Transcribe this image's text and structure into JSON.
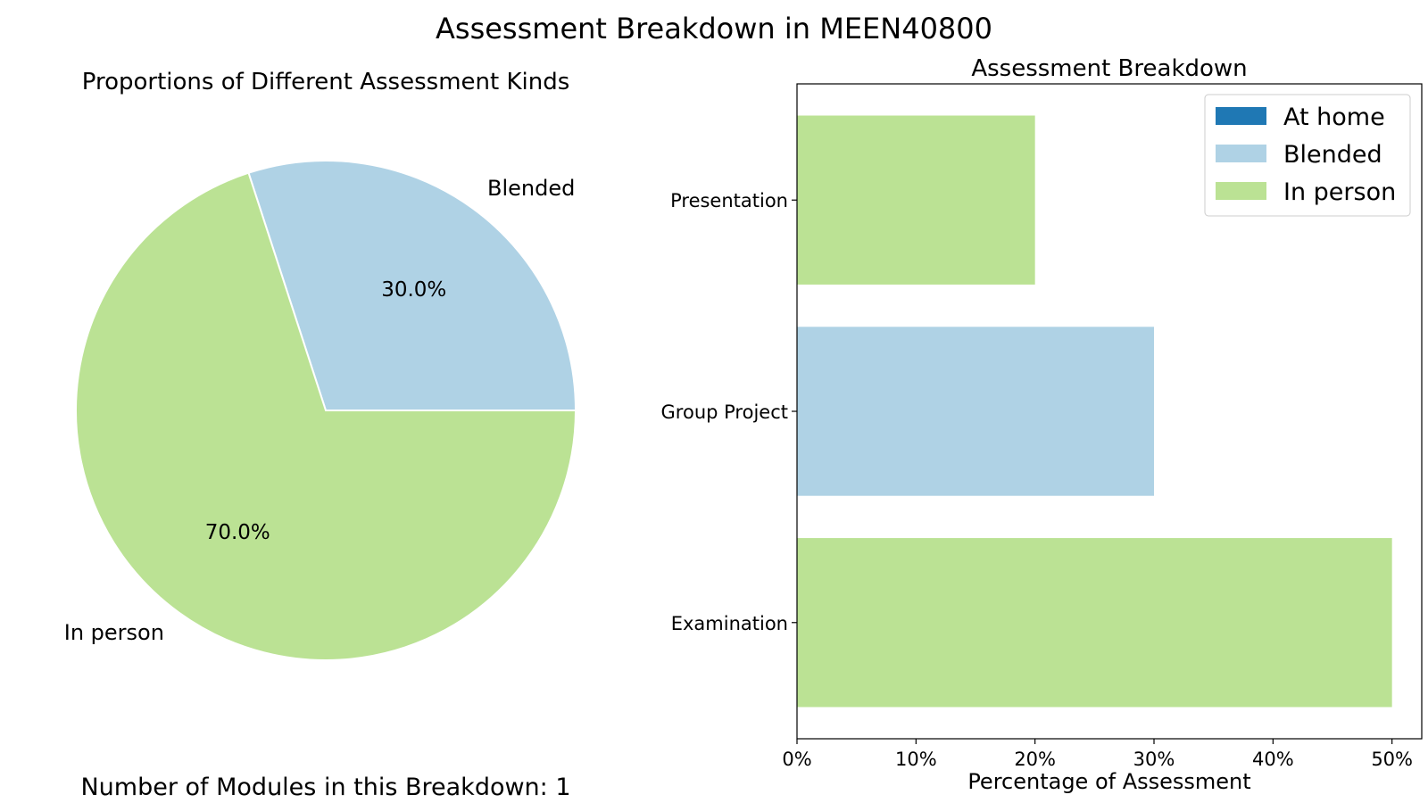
{
  "figure": {
    "title": "Assessment Breakdown in MEEN40800",
    "footer": "Number of Modules in this Breakdown: 1"
  },
  "colors": {
    "At home": "#1f78b4",
    "Blended": "#afd2e5",
    "In person": "#bbe294"
  },
  "chart_data": [
    {
      "type": "pie",
      "title": "Proportions of Different Assessment Kinds",
      "slices": [
        {
          "label": "Blended",
          "value": 30.0,
          "pct_label": "30.0%"
        },
        {
          "label": "In person",
          "value": 70.0,
          "pct_label": "70.0%"
        }
      ],
      "start_angle_deg": 0,
      "direction": "counterclockwise"
    },
    {
      "type": "bar",
      "orientation": "horizontal",
      "title": "Assessment Breakdown",
      "xlabel": "Percentage of Assessment",
      "ylabel": "",
      "categories": [
        "Presentation",
        "Group Project",
        "Examination"
      ],
      "values": [
        20,
        30,
        50
      ],
      "bar_kinds": [
        "In person",
        "Blended",
        "In person"
      ],
      "xlim": [
        0,
        52.5
      ],
      "xticks": [
        0,
        10,
        20,
        30,
        40,
        50
      ],
      "xtick_labels": [
        "0%",
        "10%",
        "20%",
        "30%",
        "40%",
        "50%"
      ],
      "grid": false,
      "legend": {
        "position": "top-right",
        "entries": [
          "At home",
          "Blended",
          "In person"
        ]
      }
    }
  ]
}
